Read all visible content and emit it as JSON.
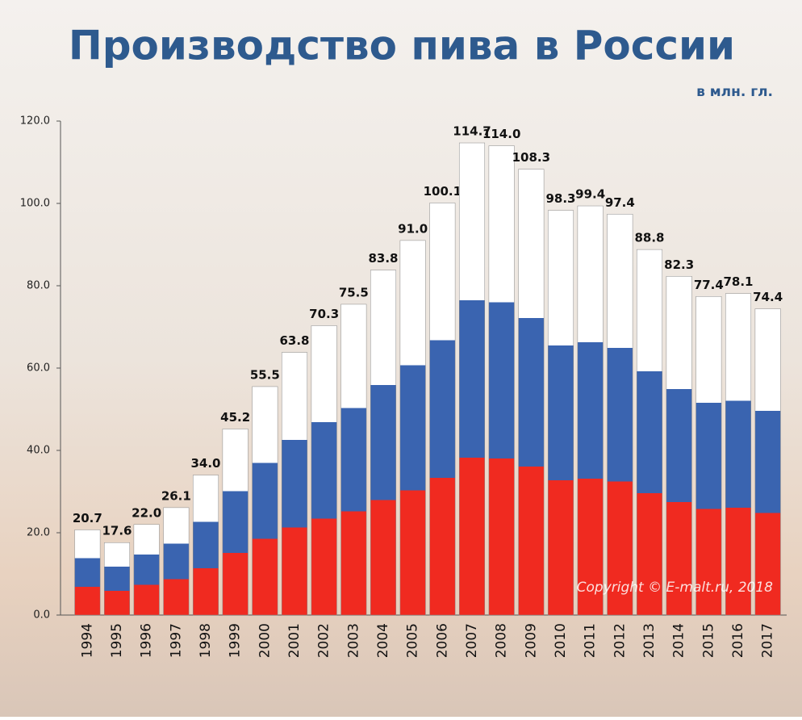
{
  "chart_data": {
    "type": "bar",
    "title": "Производство пива в России",
    "subtitle": "в млн. гл.",
    "annotation": "Copyright © E-malt.ru, 2018",
    "categories": [
      "1994",
      "1995",
      "1996",
      "1997",
      "1998",
      "1999",
      "2000",
      "2001",
      "2002",
      "2003",
      "2004",
      "2005",
      "2006",
      "2007",
      "2008",
      "2009",
      "2010",
      "2011",
      "2012",
      "2013",
      "2014",
      "2015",
      "2016",
      "2017"
    ],
    "values": [
      20.7,
      17.6,
      22.0,
      26.1,
      34.0,
      45.2,
      55.5,
      63.8,
      70.3,
      75.5,
      83.8,
      91.0,
      100.1,
      114.7,
      114.0,
      108.3,
      98.3,
      99.4,
      97.4,
      88.8,
      82.3,
      77.4,
      78.1,
      74.4
    ],
    "value_labels": [
      "20.7",
      "17.6",
      "22.0",
      "26.1",
      "34.0",
      "45.2",
      "55.5",
      "63.8",
      "70.3",
      "75.5",
      "83.8",
      "91.0",
      "100.1",
      "114.7",
      "114.0",
      "108.3",
      "98.3",
      "99.4",
      "97.4",
      "88.8",
      "82.3",
      "77.4",
      "78.1",
      "74.4"
    ],
    "colors": [
      "#ffffff",
      "#3a64b0",
      "#f02a20"
    ],
    "ylim": [
      0,
      120
    ],
    "yticks": [
      {
        "value": 0,
        "label": "0.0"
      },
      {
        "value": 20,
        "label": "20.0"
      },
      {
        "value": 40,
        "label": "40.0"
      },
      {
        "value": 60,
        "label": "60.0"
      },
      {
        "value": 80,
        "label": "80.0"
      },
      {
        "value": 100,
        "label": "100.0"
      },
      {
        "value": 120,
        "label": "120.0"
      }
    ]
  }
}
